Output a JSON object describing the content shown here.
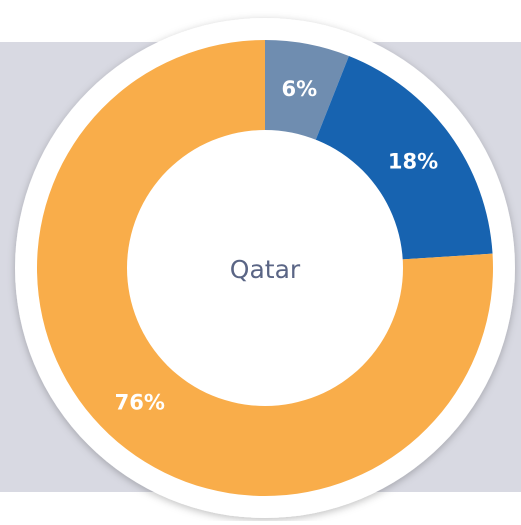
{
  "chart_data": {
    "type": "pie",
    "donut": true,
    "center_label": "Qatar",
    "values": [
      6,
      18,
      76
    ],
    "value_labels": [
      "6%",
      "18%",
      "76%"
    ],
    "colors": [
      "#6f8db0",
      "#1763b0",
      "#f9ad4a"
    ]
  }
}
